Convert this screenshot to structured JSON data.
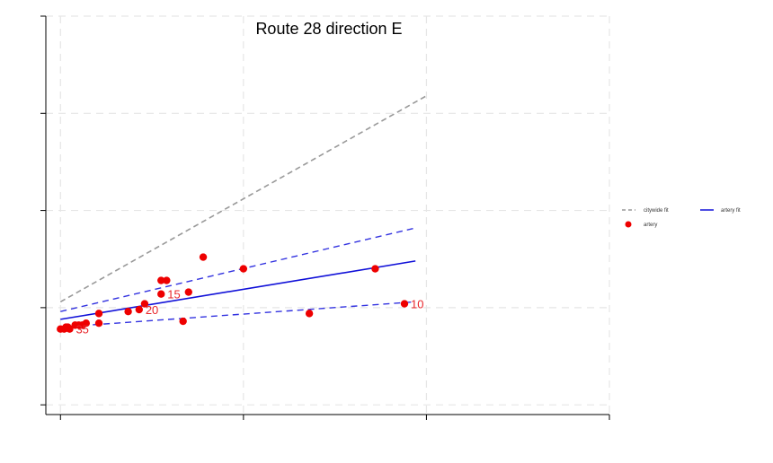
{
  "chart_data": {
    "type": "scatter",
    "title": "Route 28 direction E",
    "xlabel": "",
    "ylabel": "",
    "xlim": [
      -0.08,
      3.0
    ],
    "ylim": [
      -0.05,
      2.0
    ],
    "x_ticks": [
      0,
      1,
      2,
      3
    ],
    "y_ticks": [
      0,
      0.5,
      1.0,
      1.5,
      2.0
    ],
    "tick_labels_visible": false,
    "grid": true,
    "legend_position": "right",
    "legend": {
      "citywide": "citywide fit",
      "artery_fit": "artery fit",
      "artery": "artery"
    },
    "colors": {
      "citywide": "#999999",
      "artery_fit": "#1010d8",
      "artery_ci": "#3333e0",
      "artery": "#ee0000",
      "label": "#e8252a",
      "grid": "#e6e6e6"
    },
    "series": [
      {
        "name": "artery",
        "points": [
          {
            "x": 0.0,
            "y": 0.39
          },
          {
            "x": 0.02,
            "y": 0.39
          },
          {
            "x": 0.03,
            "y": 0.4
          },
          {
            "x": 0.05,
            "y": 0.39
          },
          {
            "x": 0.04,
            "y": 0.4
          },
          {
            "x": 0.08,
            "y": 0.41
          },
          {
            "x": 0.1,
            "y": 0.41
          },
          {
            "x": 0.12,
            "y": 0.41
          },
          {
            "x": 0.14,
            "y": 0.42
          },
          {
            "x": 0.21,
            "y": 0.42
          },
          {
            "x": 0.21,
            "y": 0.47
          },
          {
            "x": 0.37,
            "y": 0.48
          },
          {
            "x": 0.43,
            "y": 0.49
          },
          {
            "x": 0.46,
            "y": 0.52
          },
          {
            "x": 0.55,
            "y": 0.57
          },
          {
            "x": 0.55,
            "y": 0.64
          },
          {
            "x": 0.58,
            "y": 0.64
          },
          {
            "x": 0.67,
            "y": 0.43
          },
          {
            "x": 0.7,
            "y": 0.58
          },
          {
            "x": 0.78,
            "y": 0.76
          },
          {
            "x": 1.0,
            "y": 0.7
          },
          {
            "x": 1.36,
            "y": 0.47
          },
          {
            "x": 1.72,
            "y": 0.7
          },
          {
            "x": 1.88,
            "y": 0.52
          }
        ]
      },
      {
        "name": "citywide fit",
        "style": "dashed",
        "x": [
          0,
          2.0
        ],
        "y": [
          0.53,
          1.59
        ]
      },
      {
        "name": "artery fit",
        "x": [
          0,
          1.94
        ],
        "y": [
          0.44,
          0.74
        ]
      },
      {
        "name": "artery fit upper",
        "style": "dashed",
        "x": [
          0,
          1.94
        ],
        "y": [
          0.48,
          0.91
        ]
      },
      {
        "name": "artery fit lower",
        "style": "dashed",
        "x": [
          0,
          1.94
        ],
        "y": [
          0.4,
          0.53
        ]
      }
    ],
    "annotations": [
      {
        "text": "10",
        "x": 1.88,
        "y": 0.52
      },
      {
        "text": "15",
        "x": 0.55,
        "y": 0.57
      },
      {
        "text": "20",
        "x": 0.43,
        "y": 0.49
      },
      {
        "text": "35",
        "x": 0.05,
        "y": 0.39
      }
    ]
  }
}
